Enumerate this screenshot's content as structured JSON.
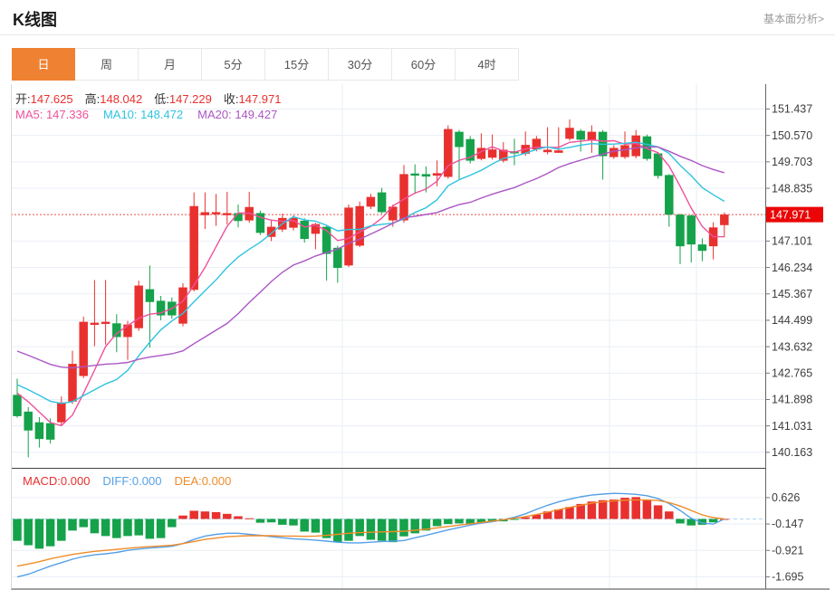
{
  "header": {
    "title": "K线图",
    "link": "基本面分析>"
  },
  "tabs": {
    "items": [
      "日",
      "周",
      "月",
      "5分",
      "15分",
      "30分",
      "60分",
      "4时"
    ],
    "selected": "日"
  },
  "legend": {
    "open_label": "开:",
    "open": "147.625",
    "high_label": "高:",
    "high": "148.042",
    "low_label": "低:",
    "low": "147.229",
    "close_label": "收:",
    "close": "147.971",
    "ma5_text": "MA5: 147.336",
    "ma10_text": "MA10: 148.472",
    "ma20_text": "MA20: 149.427"
  },
  "macd_legend": {
    "macd_text": "MACD:0.000",
    "diff_text": "DIFF:0.000",
    "dea_text": "DEA:0.000"
  },
  "colors": {
    "up": "#e8312f",
    "down": "#15a24a",
    "ma5": "#f0509b",
    "ma10": "#2fc3e0",
    "ma20": "#ab57c4",
    "diff": "#55a0e8",
    "dea": "#f08c28",
    "tab_active": "#ef8133",
    "badge_bg": "#ea0606",
    "badge_text": "#ffffff",
    "grid": "#e9eff6",
    "axis_text": "#3c3c3c",
    "zero_dash": "#aad6f0"
  },
  "chart_data": [
    {
      "type": "candlestick",
      "panel": "main",
      "title": "K线图",
      "legend_position": "top-left",
      "grid": true,
      "y_axis_side": "right",
      "y_axis_labels": [
        "151.437",
        "150.570",
        "149.703",
        "148.835",
        "147.101",
        "146.234",
        "145.367",
        "144.499",
        "143.632",
        "142.765",
        "141.898",
        "141.031",
        "140.163"
      ],
      "ylim": [
        139.9,
        152.3
      ],
      "price_marker": "147.971",
      "ohlc": [
        [
          142.05,
          142.58,
          141.3,
          141.35
        ],
        [
          141.5,
          141.65,
          140.0,
          140.88
        ],
        [
          141.15,
          141.32,
          140.32,
          140.6
        ],
        [
          141.12,
          141.28,
          140.45,
          140.58
        ],
        [
          141.15,
          142.0,
          141.05,
          141.8
        ],
        [
          141.83,
          143.5,
          141.75,
          143.07
        ],
        [
          142.67,
          144.62,
          142.6,
          144.45
        ],
        [
          144.35,
          145.82,
          143.65,
          144.42
        ],
        [
          144.38,
          145.82,
          143.7,
          144.45
        ],
        [
          144.4,
          144.7,
          143.45,
          143.95
        ],
        [
          143.95,
          144.48,
          143.2,
          144.36
        ],
        [
          144.24,
          145.8,
          144.15,
          145.64
        ],
        [
          145.52,
          146.3,
          143.6,
          145.1
        ],
        [
          145.14,
          145.3,
          144.5,
          144.66
        ],
        [
          145.11,
          145.25,
          144.55,
          144.66
        ],
        [
          144.39,
          145.72,
          144.3,
          145.58
        ],
        [
          145.5,
          148.7,
          145.45,
          148.25
        ],
        [
          147.95,
          148.7,
          147.5,
          148.05
        ],
        [
          147.98,
          148.65,
          147.6,
          148.05
        ],
        [
          147.95,
          148.72,
          147.65,
          148.02
        ],
        [
          148.02,
          148.3,
          147.55,
          147.76
        ],
        [
          147.78,
          148.72,
          147.7,
          148.22
        ],
        [
          148.02,
          148.1,
          147.3,
          147.37
        ],
        [
          147.24,
          147.8,
          147.1,
          147.57
        ],
        [
          147.48,
          148.0,
          147.4,
          147.86
        ],
        [
          147.54,
          147.95,
          147.45,
          147.86
        ],
        [
          147.77,
          147.85,
          147.05,
          147.17
        ],
        [
          147.34,
          147.7,
          146.83,
          147.66
        ],
        [
          147.57,
          147.6,
          145.8,
          146.68
        ],
        [
          146.88,
          146.95,
          145.73,
          146.22
        ],
        [
          146.3,
          148.3,
          146.25,
          148.2
        ],
        [
          146.95,
          148.4,
          146.9,
          148.25
        ],
        [
          148.23,
          148.65,
          148.15,
          148.55
        ],
        [
          148.7,
          148.85,
          148.0,
          148.05
        ],
        [
          147.78,
          148.3,
          147.57,
          148.23
        ],
        [
          147.78,
          149.6,
          147.7,
          149.3
        ],
        [
          149.32,
          149.62,
          148.65,
          149.25
        ],
        [
          149.3,
          149.55,
          148.7,
          149.22
        ],
        [
          149.25,
          149.75,
          148.9,
          149.33
        ],
        [
          149.21,
          150.9,
          149.15,
          150.78
        ],
        [
          150.69,
          150.75,
          149.12,
          150.19
        ],
        [
          150.45,
          150.55,
          149.65,
          149.74
        ],
        [
          149.8,
          150.64,
          149.75,
          150.16
        ],
        [
          149.84,
          150.6,
          149.78,
          150.11
        ],
        [
          149.74,
          150.35,
          149.68,
          150.1
        ],
        [
          150.05,
          150.46,
          149.59,
          149.98
        ],
        [
          149.97,
          150.7,
          149.9,
          150.26
        ],
        [
          150.11,
          150.55,
          150.05,
          150.46
        ],
        [
          150.02,
          150.84,
          149.95,
          150.1
        ],
        [
          150.0,
          150.84,
          150.0,
          150.08
        ],
        [
          150.46,
          151.1,
          150.4,
          150.82
        ],
        [
          150.72,
          150.78,
          150.04,
          150.43
        ],
        [
          150.4,
          150.9,
          150.0,
          150.69
        ],
        [
          150.69,
          150.75,
          149.12,
          149.89
        ],
        [
          149.86,
          150.25,
          149.8,
          150.16
        ],
        [
          149.86,
          150.7,
          149.8,
          150.25
        ],
        [
          149.89,
          150.75,
          149.82,
          150.57
        ],
        [
          150.54,
          150.6,
          149.74,
          149.8
        ],
        [
          149.98,
          150.02,
          149.15,
          149.24
        ],
        [
          149.27,
          149.3,
          147.57,
          147.97
        ],
        [
          147.97,
          148.0,
          146.34,
          146.93
        ],
        [
          147.94,
          147.97,
          146.4,
          146.99
        ],
        [
          146.99,
          147.19,
          146.44,
          146.78
        ],
        [
          146.93,
          147.72,
          146.5,
          147.55
        ],
        [
          147.625,
          148.042,
          147.229,
          147.971
        ]
      ],
      "ma_lines": [
        {
          "name": "MA5",
          "period": 5,
          "last": "147.336"
        },
        {
          "name": "MA10",
          "period": 10,
          "last": "148.472"
        },
        {
          "name": "MA20",
          "period": 20,
          "last": "149.427"
        }
      ]
    },
    {
      "type": "macd",
      "panel": "sub",
      "grid": true,
      "y_axis_side": "right",
      "y_axis_labels": [
        "0.626",
        "-0.147",
        "-0.921",
        "-1.695"
      ],
      "last_values": {
        "macd": "0.000",
        "diff": "0.000",
        "dea": "0.000"
      },
      "histogram": [
        -0.64,
        -0.77,
        -0.87,
        -0.8,
        -0.64,
        -0.34,
        -0.24,
        -0.42,
        -0.5,
        -0.56,
        -0.5,
        -0.48,
        -0.58,
        -0.56,
        -0.24,
        0.1,
        0.24,
        0.22,
        0.2,
        0.15,
        0.08,
        0.02,
        -0.11,
        -0.1,
        -0.17,
        -0.19,
        -0.37,
        -0.4,
        -0.56,
        -0.69,
        -0.64,
        -0.5,
        -0.61,
        -0.64,
        -0.68,
        -0.51,
        -0.42,
        -0.34,
        -0.21,
        -0.15,
        -0.13,
        -0.15,
        -0.1,
        -0.08,
        -0.07,
        -0.02,
        0.05,
        0.13,
        0.22,
        0.28,
        0.35,
        0.44,
        0.51,
        0.55,
        0.57,
        0.62,
        0.64,
        0.57,
        0.4,
        0.22,
        -0.13,
        -0.19,
        -0.17,
        -0.1,
        0.0
      ],
      "diff": [
        -1.7,
        -1.62,
        -1.5,
        -1.38,
        -1.28,
        -1.18,
        -1.1,
        -1.05,
        -1.02,
        -0.98,
        -0.92,
        -0.88,
        -0.85,
        -0.83,
        -0.8,
        -0.72,
        -0.6,
        -0.5,
        -0.45,
        -0.42,
        -0.42,
        -0.45,
        -0.48,
        -0.52,
        -0.55,
        -0.58,
        -0.6,
        -0.62,
        -0.65,
        -0.68,
        -0.7,
        -0.7,
        -0.68,
        -0.66,
        -0.65,
        -0.63,
        -0.55,
        -0.48,
        -0.4,
        -0.32,
        -0.25,
        -0.18,
        -0.12,
        -0.08,
        -0.02,
        0.05,
        0.15,
        0.28,
        0.4,
        0.5,
        0.58,
        0.65,
        0.7,
        0.73,
        0.75,
        0.74,
        0.72,
        0.68,
        0.6,
        0.45,
        0.25,
        0.02,
        -0.12,
        -0.15,
        0.0
      ],
      "dea": [
        -1.38,
        -1.32,
        -1.25,
        -1.17,
        -1.1,
        -1.04,
        -0.99,
        -0.95,
        -0.92,
        -0.89,
        -0.86,
        -0.83,
        -0.81,
        -0.79,
        -0.77,
        -0.72,
        -0.66,
        -0.6,
        -0.56,
        -0.52,
        -0.5,
        -0.49,
        -0.49,
        -0.49,
        -0.5,
        -0.5,
        -0.51,
        -0.5,
        -0.48,
        -0.45,
        -0.42,
        -0.4,
        -0.39,
        -0.38,
        -0.37,
        -0.36,
        -0.33,
        -0.3,
        -0.26,
        -0.22,
        -0.18,
        -0.14,
        -0.1,
        -0.06,
        -0.02,
        0.02,
        0.07,
        0.13,
        0.2,
        0.27,
        0.34,
        0.4,
        0.46,
        0.5,
        0.53,
        0.55,
        0.56,
        0.56,
        0.54,
        0.48,
        0.38,
        0.25,
        0.12,
        0.04,
        0.0
      ]
    }
  ]
}
